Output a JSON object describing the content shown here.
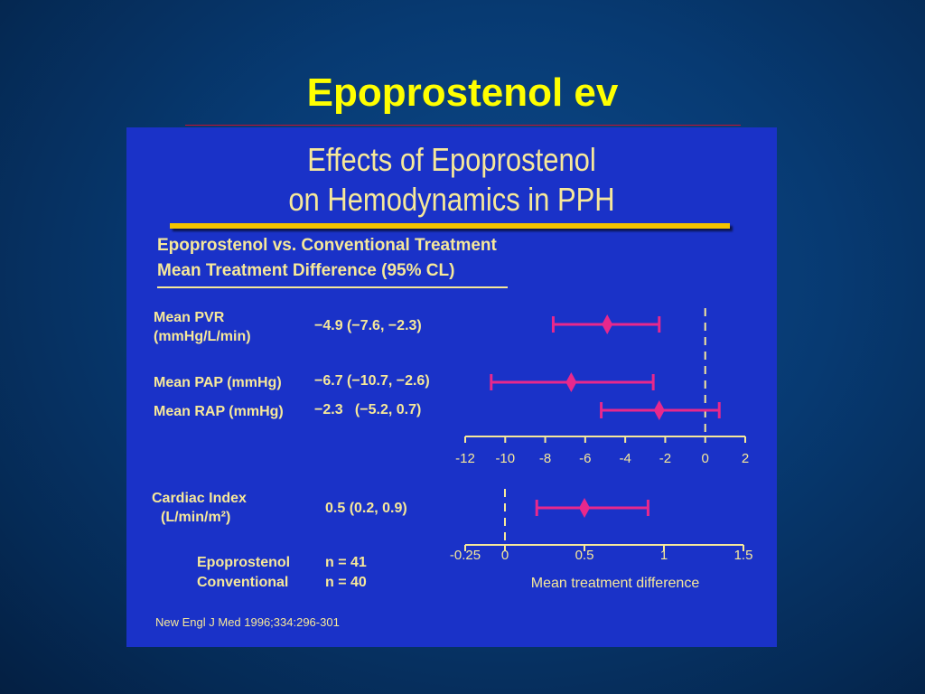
{
  "slide": {
    "title": "Epoprostenol ev"
  },
  "figure": {
    "title_line1": "Effects of Epoprostenol",
    "title_line2": "on Hemodynamics in PPH",
    "subtitle_line1": "Epoprostenol vs. Conventional Treatment",
    "subtitle_line2": "Mean Treatment Difference (95% CL)",
    "group_epo_label": "Epoprostenol",
    "group_epo_n": "n = 41",
    "group_conv_label": "Conventional",
    "group_conv_n": "n = 40",
    "source": "New Engl J Med 1996;334:296-301"
  },
  "chart_data": [
    {
      "type": "forest",
      "xlim": [
        -12,
        2
      ],
      "ticks": [
        -12,
        -10,
        -8,
        -6,
        -4,
        -2,
        0,
        2
      ],
      "reference_line": 0,
      "marker_color": "#e8288c",
      "items": [
        {
          "label_line1": "Mean PVR",
          "label_line2": "(mmHg/L/min)",
          "value_text": "−4.9 (−7.6, −2.3)",
          "estimate": -4.9,
          "lower": -7.6,
          "upper": -2.3
        },
        {
          "label_line1": "Mean PAP (mmHg)",
          "label_line2": "",
          "value_text": "−6.7 (−10.7, −2.6)",
          "estimate": -6.7,
          "lower": -10.7,
          "upper": -2.6
        },
        {
          "label_line1": "Mean RAP (mmHg)",
          "label_line2": "",
          "value_text": "−2.3   (−5.2, 0.7)",
          "estimate": -2.3,
          "lower": -5.2,
          "upper": 0.7
        }
      ]
    },
    {
      "type": "forest",
      "xlim": [
        -0.25,
        1.5
      ],
      "ticks": [
        -0.25,
        0,
        0.5,
        1,
        1.5
      ],
      "tick_labels": [
        "-0.25",
        "0",
        "0.5",
        "1",
        "1.5"
      ],
      "reference_line": 0,
      "xlabel": "Mean treatment difference",
      "marker_color": "#e8288c",
      "items": [
        {
          "label_line1": "Cardiac Index",
          "label_line2": "(L/min/m²)",
          "value_text": "0.5 (0.2, 0.9)",
          "estimate": 0.5,
          "lower": 0.2,
          "upper": 0.9
        }
      ]
    }
  ]
}
